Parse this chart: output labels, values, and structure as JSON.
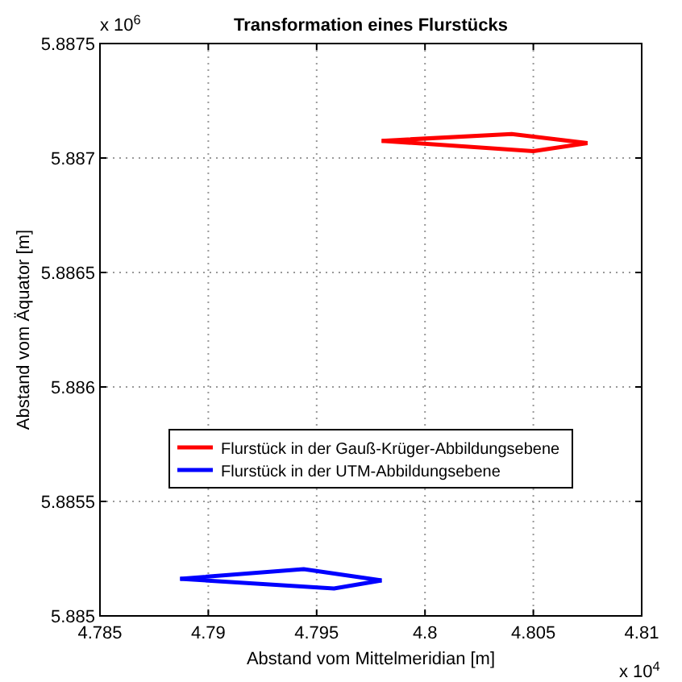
{
  "chart_data": {
    "type": "line",
    "title": "Transformation eines Flurstücks",
    "xlabel": "Abstand vom Mittelmeridian [m]",
    "ylabel": "Abstand vom Äquator [m]",
    "series": [
      {
        "name": "Flurstück in der Gauß-Krüger-Abbildungsebene",
        "color": "#ff0000",
        "x": [
          4.798,
          4.804,
          4.8075
        ],
        "values": [
          5.887075,
          5.887105,
          5.887065
        ]
      },
      {
        "color": "#ff0000",
        "x": [
          4.798,
          4.805,
          4.8075
        ],
        "values": [
          5.887075,
          5.88703,
          5.887065
        ]
      },
      {
        "name": "Flurstück in der UTM-Abbildungsebene",
        "color": "#0000ff",
        "x": [
          4.7887,
          4.7944,
          4.798
        ],
        "values": [
          5.885162,
          5.885204,
          5.885155
        ]
      },
      {
        "color": "#0000ff",
        "x": [
          4.7887,
          4.7958,
          4.798
        ],
        "values": [
          5.885162,
          5.88512,
          5.885155
        ]
      }
    ],
    "xlim": [
      4.785,
      4.81
    ],
    "ylim": [
      5.885,
      5.8875
    ],
    "xticks": [
      4.785,
      4.79,
      4.795,
      4.8,
      4.805,
      4.81
    ],
    "yticks": [
      5.885,
      5.8855,
      5.886,
      5.8865,
      5.887,
      5.8875
    ],
    "annotations": [
      "x 10$^{6}$",
      "x 10$^{4}$"
    ],
    "grid": true,
    "legend": "left",
    "line_style": "solid",
    "marker": "none"
  }
}
